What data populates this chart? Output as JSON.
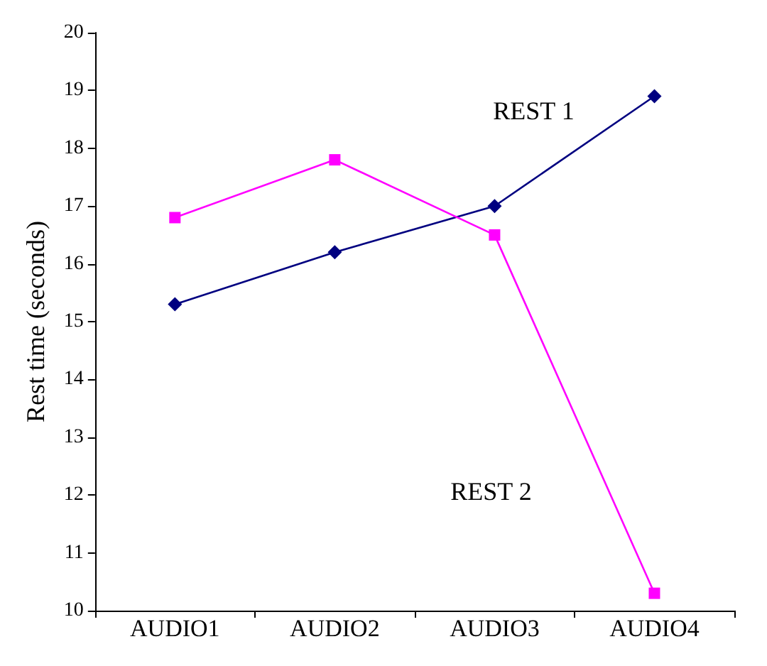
{
  "chart_data": {
    "type": "line",
    "ylabel": "Rest time (seconds)",
    "categories": [
      "AUDIO1",
      "AUDIO2",
      "AUDIO3",
      "AUDIO4"
    ],
    "series": [
      {
        "name": "REST 1",
        "color": "#000080",
        "marker": "diamond",
        "values": [
          15.3,
          16.2,
          17.0,
          18.9
        ]
      },
      {
        "name": "REST 2",
        "color": "#ff00ff",
        "marker": "square",
        "values": [
          16.8,
          17.8,
          16.5,
          10.3
        ]
      }
    ],
    "ylim": [
      10,
      20
    ],
    "yticks": [
      10,
      11,
      12,
      13,
      14,
      15,
      16,
      17,
      18,
      19,
      20
    ],
    "grid": false,
    "legend": false
  }
}
